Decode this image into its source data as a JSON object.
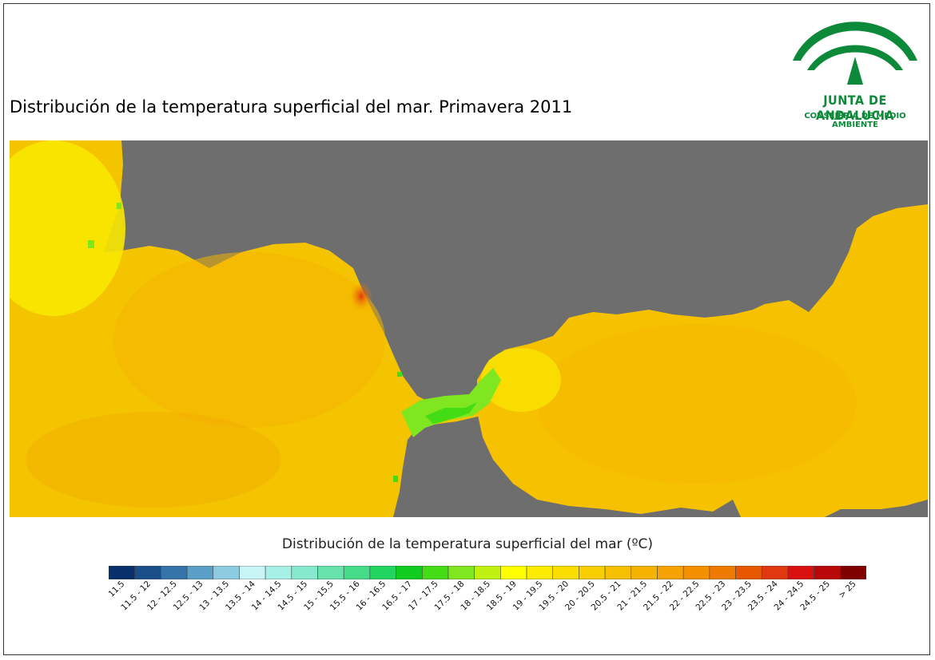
{
  "title": "Distribución de la temperatura superficial del mar. Primavera 2011",
  "logo": {
    "line1": "JUNTA DE ANDALUCIA",
    "line2": "CONSEJERÍA DE MEDIO AMBIENTE",
    "color": "#0c8a3a"
  },
  "map": {
    "land_color": "#6e6e6e",
    "region": "Strait of Gibraltar / Gulf of Cádiz / Alborán Sea"
  },
  "legend": {
    "title": "Distribución de la temperatura superficial del mar (ºC)",
    "classes": [
      {
        "label": "< 11.5",
        "color": "#08306b"
      },
      {
        "label": "11.5 - 12",
        "color": "#1b4f8a"
      },
      {
        "label": "12 - 12.5",
        "color": "#3574a8"
      },
      {
        "label": "12.5 - 13",
        "color": "#5a9fc6"
      },
      {
        "label": "13 - 13.5",
        "color": "#8ccbe0"
      },
      {
        "label": "13.5 - 14",
        "color": "#c8f4f6"
      },
      {
        "label": "14 - 14.5",
        "color": "#a6f0e6"
      },
      {
        "label": "14.5 - 15",
        "color": "#86e8cc"
      },
      {
        "label": "15 - 15.5",
        "color": "#66e2aa"
      },
      {
        "label": "15.5 - 16",
        "color": "#44dc88"
      },
      {
        "label": "16 - 16.5",
        "color": "#22d460"
      },
      {
        "label": "16.5 - 17",
        "color": "#10cc20"
      },
      {
        "label": "17 - 17.5",
        "color": "#44dc14"
      },
      {
        "label": "17.5 - 18",
        "color": "#80e620"
      },
      {
        "label": "18 - 18.5",
        "color": "#c0f010"
      },
      {
        "label": "18.5 - 19",
        "color": "#ffff00"
      },
      {
        "label": "19 - 19.5",
        "color": "#fcec00"
      },
      {
        "label": "19.5 - 20",
        "color": "#fadd00"
      },
      {
        "label": "20 - 20.5",
        "color": "#f8ce00"
      },
      {
        "label": "20.5 - 21",
        "color": "#f6c000"
      },
      {
        "label": "21 - 21.5",
        "color": "#f6b200"
      },
      {
        "label": "21.5 - 22",
        "color": "#f6a200"
      },
      {
        "label": "22 - 22.5",
        "color": "#f29000"
      },
      {
        "label": "22.5 - 23",
        "color": "#ee7a00"
      },
      {
        "label": "23 - 23.5",
        "color": "#e85800"
      },
      {
        "label": "23.5 - 24",
        "color": "#e03810"
      },
      {
        "label": "24 - 24.5",
        "color": "#d81010"
      },
      {
        "label": "24.5 - 25",
        "color": "#b80808"
      },
      {
        "label": "> 25",
        "color": "#800000"
      }
    ]
  }
}
